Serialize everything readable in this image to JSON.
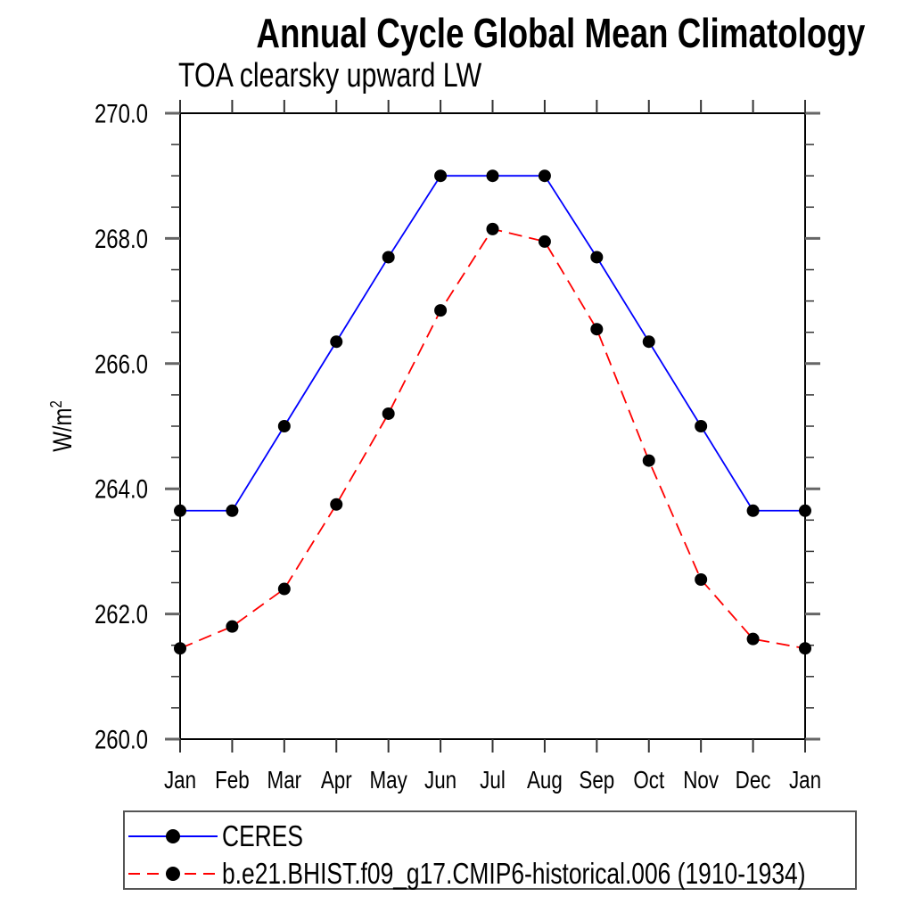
{
  "chart_data": {
    "type": "line",
    "title": "Annual Cycle Global Mean Climatology",
    "subtitle": "TOA clearsky upward LW",
    "ylabel_base": "W/m",
    "ylabel_sup": "2",
    "x": [
      "Jan",
      "Feb",
      "Mar",
      "Apr",
      "May",
      "Jun",
      "Jul",
      "Aug",
      "Sep",
      "Oct",
      "Nov",
      "Dec",
      "Jan"
    ],
    "y_tick_labels": [
      "270.0",
      "268.0",
      "266.0",
      "264.0",
      "262.0",
      "260.0"
    ],
    "ylim": [
      260.0,
      270.0
    ],
    "y_major_step": 2.0,
    "y_minor_step": 0.5,
    "grid": false,
    "legend_position": "bottom-left",
    "frame_color": "#000000",
    "tick_color": "#555555",
    "series": [
      {
        "name": "CERES",
        "color": "#0000ff",
        "line_style": "solid",
        "marker": "filled-circle",
        "marker_color": "#000000",
        "values": [
          263.65,
          263.65,
          265.0,
          266.35,
          267.7,
          269.0,
          269.0,
          269.0,
          267.7,
          266.35,
          265.0,
          263.65,
          263.65
        ]
      },
      {
        "name": "b.e21.BHIST.f09_g17.CMIP6-historical.006 (1910-1934)",
        "color": "#ff0000",
        "line_style": "dashed",
        "marker": "filled-circle",
        "marker_color": "#000000",
        "values": [
          261.45,
          261.8,
          262.4,
          263.75,
          265.2,
          266.85,
          268.15,
          267.95,
          266.55,
          264.45,
          262.55,
          261.6,
          261.45
        ]
      }
    ]
  }
}
